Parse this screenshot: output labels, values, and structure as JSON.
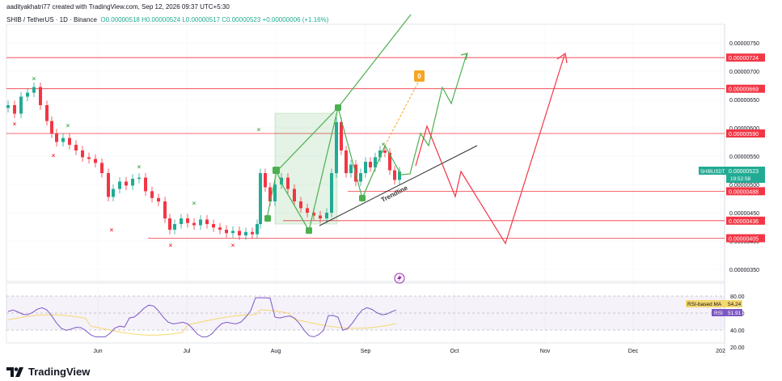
{
  "header": {
    "created_by": "aaditya​khatri77 created with TradingView.com, Sep 12, 2026 09:37 UTC+5:30",
    "symbol": "SHIB / TetherUS · 1D · Binance",
    "ohlc": "O0.00000518  H0.00000524  L0.00000517  C0.00000523  +0.00000006 (+1.16%)"
  },
  "brand": "TradingView",
  "colors": {
    "up": "#22ab94",
    "down": "#f23645",
    "green_path": "#4caf50",
    "red_path": "#f23645",
    "rsi": "#7e57c2",
    "rsi_ma": "#f5d76e"
  },
  "chart_data": [
    {
      "type": "candlestick",
      "ylim": [
        3.3e-06,
        7.8e-06
      ],
      "price_ticks": [
        "0.00000750",
        "0.00000700",
        "0.00000650",
        "0.00000600",
        "0.00000550",
        "0.00000500",
        "0.00000450",
        "0.00000400",
        "0.00000350"
      ],
      "x_ticks": [
        "Jun",
        "Jul",
        "Aug",
        "Sep",
        "Oct",
        "Nov",
        "Dec",
        "202"
      ],
      "levels": [
        {
          "label": "0.00000724",
          "value": 7.24e-06
        },
        {
          "label": "0.00000669",
          "value": 6.69e-06
        },
        {
          "label": "0.00000590",
          "value": 5.9e-06
        },
        {
          "label": "0.00000488",
          "value": 4.88e-06
        },
        {
          "label": "0.00000436",
          "value": 4.36e-06
        },
        {
          "label": "0.00000405",
          "value": 4.05e-06
        }
      ],
      "current_price": {
        "symbol": "SHIBUSDT",
        "value": "0.00000523",
        "countdown": "19:52:58"
      },
      "annotations": [
        "Trendline"
      ],
      "target_marker": "0"
    },
    {
      "type": "line",
      "ylim": [
        30,
        80
      ],
      "ticks": [
        "80.00",
        "60.00",
        "40.00",
        "20.00"
      ],
      "series": [
        {
          "name": "RSI-based MA",
          "value": "54.24"
        },
        {
          "name": "RSI",
          "value": "51.91"
        }
      ]
    }
  ]
}
